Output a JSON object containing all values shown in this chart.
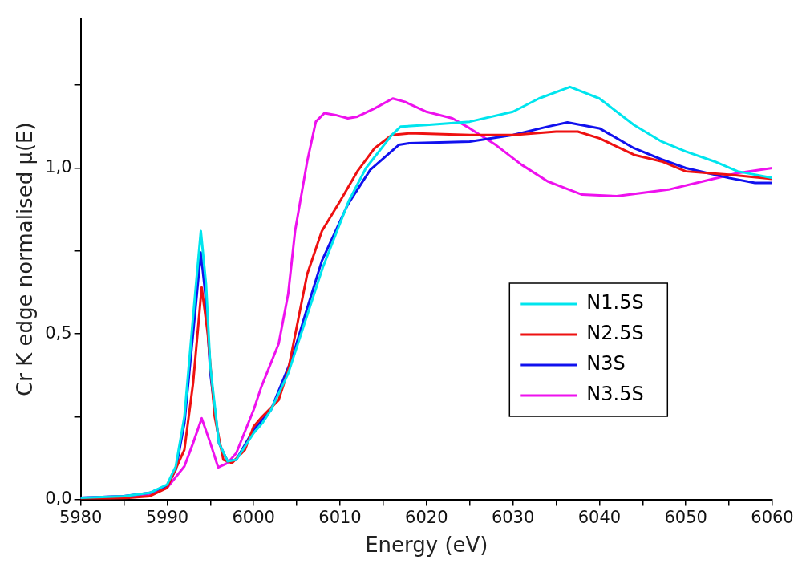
{
  "chart_data": {
    "type": "line",
    "xlabel": "Energy (eV)",
    "ylabel": "Cr K edge normalised µ(E)",
    "xlim": [
      5980,
      6060
    ],
    "ylim": [
      0,
      1.45
    ],
    "xticks": [
      5980,
      {
        "value": 5985,
        "label": null
      },
      5990,
      {
        "value": 5995,
        "label": null
      },
      6000,
      {
        "value": 6005,
        "label": null
      },
      6010,
      {
        "value": 6015,
        "label": null
      },
      6020,
      {
        "value": 6025,
        "label": null
      },
      6030,
      {
        "value": 6035,
        "label": null
      },
      6040,
      {
        "value": 6045,
        "label": null
      },
      6050,
      {
        "value": 6055,
        "label": null
      },
      6060
    ],
    "yticks": [
      {
        "value": 0,
        "label": "0,0"
      },
      {
        "value": 0.25,
        "label": null
      },
      {
        "value": 0.5,
        "label": "0,5"
      },
      {
        "value": 0.75,
        "label": null
      },
      {
        "value": 1,
        "label": "1,0"
      },
      {
        "value": 1.25,
        "label": null
      }
    ],
    "grid": false,
    "legend": "right",
    "marker": "none",
    "line_style": "solid",
    "series": [
      {
        "name": "N1.5S",
        "color": "#00e5ee",
        "x": [
          5980,
          5985,
          5988,
          5990,
          5991,
          5992,
          5993,
          5993.9,
          5994.5,
          5995,
          5996,
          5997,
          5998,
          6000,
          6001,
          6002,
          6004,
          6006,
          6008,
          6011,
          6013,
          6016,
          6017,
          6020,
          6025,
          6030,
          6033,
          6036.6,
          6040,
          6044,
          6047.2,
          6050,
          6053.3,
          6056,
          6060
        ],
        "values": [
          0.005,
          0.01,
          0.02,
          0.045,
          0.1,
          0.25,
          0.55,
          0.81,
          0.65,
          0.4,
          0.17,
          0.115,
          0.12,
          0.2,
          0.23,
          0.27,
          0.38,
          0.54,
          0.7,
          0.9,
          1.0,
          1.1,
          1.125,
          1.13,
          1.14,
          1.17,
          1.21,
          1.245,
          1.21,
          1.13,
          1.08,
          1.05,
          1.02,
          0.99,
          0.97
        ]
      },
      {
        "name": "N2.5S",
        "color": "#ee1111",
        "x": [
          5980,
          5985,
          5988,
          5990,
          5992,
          5993,
          5994,
          5994.7,
          5995.5,
          5996.5,
          5997.5,
          5999,
          6000,
          6001,
          6002.9,
          6004,
          6006.2,
          6007.9,
          6010,
          6012,
          6014,
          6016,
          6018,
          6025,
          6030,
          6035,
          6037.5,
          6040,
          6044,
          6047.2,
          6050,
          6055,
          6060
        ],
        "values": [
          0.0,
          0.004,
          0.01,
          0.035,
          0.15,
          0.35,
          0.64,
          0.5,
          0.25,
          0.12,
          0.11,
          0.15,
          0.22,
          0.25,
          0.3,
          0.39,
          0.68,
          0.81,
          0.9,
          0.99,
          1.06,
          1.1,
          1.105,
          1.1,
          1.1,
          1.11,
          1.11,
          1.09,
          1.04,
          1.02,
          0.99,
          0.98,
          0.967
        ]
      },
      {
        "name": "N3S",
        "color": "#1111ee",
        "x": [
          5980,
          5985,
          5988,
          5990,
          5991,
          5992,
          5993,
          5993.9,
          5994.5,
          5995,
          5996,
          5997,
          5998,
          6000,
          6001,
          6002,
          6004.5,
          6006,
          6007.9,
          6010.9,
          6013.5,
          6016.8,
          6018,
          6025,
          6030,
          6034,
          6036.3,
          6040,
          6044,
          6047.2,
          6050,
          6055,
          6058,
          6060
        ],
        "values": [
          0.005,
          0.01,
          0.02,
          0.042,
          0.09,
          0.23,
          0.5,
          0.745,
          0.6,
          0.38,
          0.17,
          0.115,
          0.12,
          0.21,
          0.24,
          0.27,
          0.43,
          0.56,
          0.72,
          0.89,
          0.995,
          1.07,
          1.075,
          1.08,
          1.1,
          1.125,
          1.138,
          1.12,
          1.06,
          1.026,
          1.0,
          0.97,
          0.955,
          0.955
        ]
      },
      {
        "name": "N3.5S",
        "color": "#ee11ee",
        "x": [
          5980,
          5985,
          5988,
          5990,
          5992,
          5993,
          5994,
          5995,
          5995.9,
          5997,
          5998,
          6000,
          6000.9,
          6002.9,
          6004,
          6004.8,
          6006.2,
          6007.2,
          6008.2,
          6009.5,
          6010.9,
          6012,
          6014,
          6016.1,
          6017.5,
          6020,
          6023,
          6025,
          6028,
          6031,
          6034,
          6036,
          6038,
          6042,
          6048,
          6052,
          6056,
          6060
        ],
        "values": [
          0.005,
          0.01,
          0.015,
          0.035,
          0.1,
          0.17,
          0.245,
          0.17,
          0.097,
          0.11,
          0.14,
          0.27,
          0.34,
          0.47,
          0.62,
          0.81,
          1.02,
          1.14,
          1.166,
          1.16,
          1.15,
          1.155,
          1.18,
          1.21,
          1.2,
          1.17,
          1.15,
          1.12,
          1.07,
          1.01,
          0.96,
          0.94,
          0.92,
          0.915,
          0.935,
          0.96,
          0.985,
          1.0
        ]
      }
    ]
  }
}
